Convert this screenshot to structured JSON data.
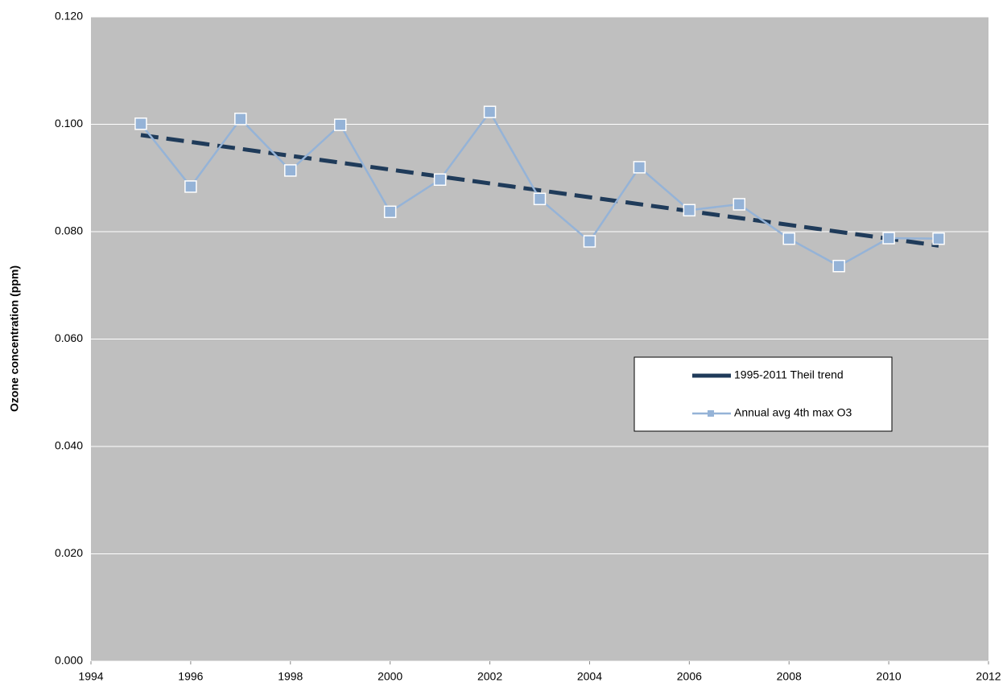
{
  "chart_data": {
    "type": "line",
    "y_label": "Ozone concentration (ppm)",
    "xlim": [
      1994,
      2012
    ],
    "xticks": [
      1994,
      1996,
      1998,
      2000,
      2002,
      2004,
      2006,
      2008,
      2010,
      2012
    ],
    "ylim": [
      0,
      0.12
    ],
    "yticks": [
      {
        "value": 0,
        "label": "0.000"
      },
      {
        "value": 0.02,
        "label": "0.020"
      },
      {
        "value": 0.04,
        "label": "0.040"
      },
      {
        "value": 0.06,
        "label": "0.060"
      },
      {
        "value": 0.08,
        "label": "0.080"
      },
      {
        "value": 0.1,
        "label": "0.100"
      },
      {
        "value": 0.12,
        "label": "0.120"
      }
    ],
    "grid": true,
    "series": [
      {
        "name": "1995-2011 Theil trend",
        "color": "#1f3b5a",
        "dashed": true,
        "marker": false,
        "x": [
          1995,
          2011
        ],
        "values": [
          0.098,
          0.0774
        ]
      },
      {
        "name": "Annual avg 4th max O3",
        "color": "#95b3d7",
        "dashed": false,
        "marker": true,
        "x": [
          1995,
          1996,
          1997,
          1998,
          1999,
          2000,
          2001,
          2002,
          2003,
          2004,
          2005,
          2006,
          2007,
          2008,
          2009,
          2010,
          2011
        ],
        "values": [
          0.1001,
          0.0884,
          0.101,
          0.0914,
          0.0999,
          0.0837,
          0.0897,
          0.1023,
          0.0861,
          0.0782,
          0.092,
          0.084,
          0.0851,
          0.0787,
          0.0736,
          0.0788,
          0.0787
        ]
      }
    ]
  }
}
